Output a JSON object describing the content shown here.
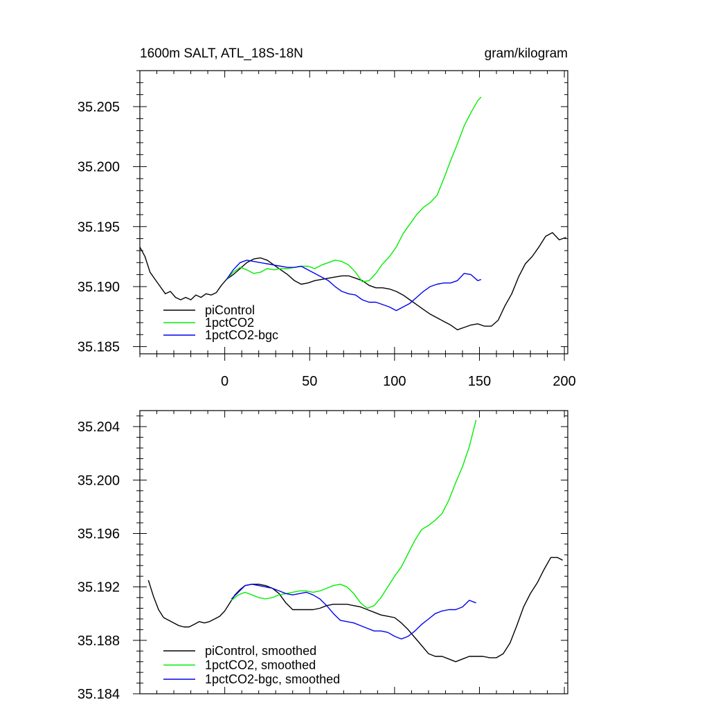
{
  "colors": {
    "piControl": "#000000",
    "1pctCO2": "#00ee00",
    "bgc": "#0000ee"
  },
  "chart_data": [
    {
      "type": "line",
      "title": "1600m SALT, ATL_18S-18N",
      "units": "gram/kilogram",
      "xlabel": "",
      "ylabel": "",
      "xlim": [
        -50,
        202
      ],
      "ylim": [
        35.1844,
        35.208
      ],
      "xticks": [
        0,
        50,
        100,
        150,
        200
      ],
      "xtick_labels": [
        "0",
        "50",
        "100",
        "150",
        "200"
      ],
      "yticks": [
        35.185,
        35.19,
        35.195,
        35.2,
        35.205
      ],
      "ytick_labels": [
        "35.185",
        "35.190",
        "35.195",
        "35.200",
        "35.205"
      ],
      "legend": [
        "piControl",
        "1pctCO2",
        "1pctCO2-bgc"
      ],
      "series": [
        {
          "name": "piControl",
          "color": "#000000",
          "x": [
            -50,
            -47,
            -44,
            -41,
            -38,
            -35,
            -32,
            -29,
            -26,
            -23,
            -20,
            -17,
            -14,
            -11,
            -8,
            -5,
            -2,
            1,
            5,
            9,
            13,
            17,
            21,
            25,
            29,
            33,
            37,
            41,
            45,
            49,
            53,
            57,
            61,
            65,
            69,
            73,
            77,
            81,
            85,
            89,
            93,
            97,
            101,
            105,
            109,
            113,
            117,
            121,
            125,
            129,
            133,
            137,
            141,
            145,
            149,
            153,
            157,
            161,
            165,
            169,
            173,
            177,
            181,
            185,
            189,
            193,
            197,
            201
          ],
          "y": [
            35.1933,
            35.1925,
            35.1912,
            35.1906,
            35.19,
            35.1894,
            35.1896,
            35.1891,
            35.1889,
            35.1891,
            35.1889,
            35.1893,
            35.1891,
            35.1894,
            35.1893,
            35.1895,
            35.1901,
            35.1906,
            35.191,
            35.1915,
            35.192,
            35.1923,
            35.1924,
            35.1922,
            35.1918,
            35.1914,
            35.191,
            35.1905,
            35.1902,
            35.1903,
            35.1905,
            35.1906,
            35.1907,
            35.1908,
            35.1909,
            35.1909,
            35.1907,
            35.1905,
            35.1901,
            35.1899,
            35.1899,
            35.1898,
            35.1896,
            35.1893,
            35.1889,
            35.1885,
            35.1881,
            35.1877,
            35.1874,
            35.1871,
            35.1868,
            35.1864,
            35.1866,
            35.1868,
            35.1869,
            35.1867,
            35.1867,
            35.1872,
            35.1884,
            35.1894,
            35.1908,
            35.1919,
            35.1925,
            35.1933,
            35.1942,
            35.1945,
            35.1939,
            35.1941
          ]
        },
        {
          "name": "1pctCO2",
          "color": "#00ee00",
          "x": [
            1,
            5,
            9,
            13,
            17,
            21,
            25,
            29,
            33,
            37,
            41,
            45,
            49,
            53,
            57,
            61,
            65,
            69,
            73,
            77,
            81,
            85,
            89,
            93,
            97,
            101,
            105,
            109,
            113,
            117,
            121,
            125,
            129,
            133,
            137,
            141,
            145,
            149,
            151
          ],
          "y": [
            35.1906,
            35.1912,
            35.1916,
            35.1914,
            35.1911,
            35.1912,
            35.1915,
            35.1914,
            35.1915,
            35.1915,
            35.1916,
            35.1917,
            35.1917,
            35.1915,
            35.1918,
            35.192,
            35.1922,
            35.1921,
            35.1918,
            35.1912,
            35.1904,
            35.1905,
            35.1911,
            35.1919,
            35.1925,
            35.1933,
            35.1944,
            35.1952,
            35.196,
            35.1966,
            35.197,
            35.1976,
            35.199,
            35.2005,
            35.2019,
            35.2034,
            35.2045,
            35.2055,
            35.2058
          ]
        },
        {
          "name": "1pctCO2-bgc",
          "color": "#0000ee",
          "x": [
            1,
            5,
            9,
            13,
            17,
            21,
            25,
            29,
            33,
            37,
            41,
            45,
            49,
            53,
            57,
            61,
            65,
            69,
            73,
            77,
            81,
            85,
            89,
            93,
            97,
            101,
            105,
            109,
            113,
            117,
            121,
            125,
            129,
            133,
            137,
            141,
            145,
            149,
            151
          ],
          "y": [
            35.1906,
            35.1914,
            35.192,
            35.1922,
            35.1921,
            35.192,
            35.1919,
            35.1918,
            35.1917,
            35.1916,
            35.1916,
            35.1917,
            35.1914,
            35.1911,
            35.1908,
            35.1905,
            35.19,
            35.1896,
            35.1894,
            35.1893,
            35.1889,
            35.1887,
            35.1887,
            35.1885,
            35.1883,
            35.188,
            35.1883,
            35.1886,
            35.1891,
            35.1896,
            35.19,
            35.1902,
            35.1903,
            35.1903,
            35.1905,
            35.1911,
            35.191,
            35.1905,
            35.1906
          ]
        }
      ]
    },
    {
      "type": "line",
      "title": "",
      "xlabel": "",
      "ylabel": "",
      "xlim": [
        -50,
        202
      ],
      "ylim": [
        35.184,
        35.2052
      ],
      "xticks": [
        0,
        50,
        100,
        150,
        200
      ],
      "yticks": [
        35.184,
        35.188,
        35.192,
        35.196,
        35.2,
        35.204
      ],
      "ytick_labels": [
        "35.184",
        "35.188",
        "35.192",
        "35.196",
        "35.200",
        "35.204"
      ],
      "legend": [
        "piControl, smoothed",
        "1pctCO2, smoothed",
        "1pctCO2-bgc, smoothed"
      ],
      "series": [
        {
          "name": "piControl, smoothed",
          "color": "#000000",
          "x": [
            -45,
            -42,
            -39,
            -36,
            -33,
            -30,
            -27,
            -24,
            -21,
            -18,
            -15,
            -12,
            -9,
            -6,
            -3,
            0,
            3,
            6,
            9,
            12,
            16,
            20,
            24,
            28,
            32,
            36,
            40,
            44,
            48,
            52,
            56,
            60,
            64,
            68,
            72,
            76,
            80,
            84,
            88,
            92,
            96,
            100,
            104,
            108,
            112,
            116,
            120,
            124,
            128,
            132,
            136,
            140,
            144,
            148,
            152,
            156,
            160,
            164,
            168,
            172,
            176,
            180,
            184,
            188,
            192,
            196,
            199
          ],
          "y": [
            35.1925,
            35.1913,
            35.1903,
            35.1897,
            35.1895,
            35.1893,
            35.1891,
            35.189,
            35.189,
            35.1892,
            35.1894,
            35.1893,
            35.1894,
            35.1896,
            35.1898,
            35.1902,
            35.1908,
            35.1914,
            35.1918,
            35.1921,
            35.1922,
            35.1922,
            35.1921,
            35.1919,
            35.1915,
            35.1908,
            35.1903,
            35.1903,
            35.1903,
            35.1903,
            35.1904,
            35.1906,
            35.1907,
            35.1907,
            35.1907,
            35.1906,
            35.1905,
            35.1903,
            35.1901,
            35.1899,
            35.1898,
            35.1897,
            35.1893,
            35.1888,
            35.1882,
            35.1876,
            35.187,
            35.1868,
            35.1868,
            35.1866,
            35.1864,
            35.1866,
            35.1868,
            35.1868,
            35.1868,
            35.1867,
            35.1867,
            35.187,
            35.1878,
            35.1891,
            35.1905,
            35.1915,
            35.1923,
            35.1933,
            35.1942,
            35.1942,
            35.194
          ]
        },
        {
          "name": "1pctCO2, smoothed",
          "color": "#00ee00",
          "x": [
            4,
            8,
            12,
            16,
            20,
            24,
            28,
            32,
            36,
            40,
            44,
            48,
            52,
            56,
            60,
            64,
            68,
            72,
            76,
            80,
            84,
            88,
            92,
            96,
            100,
            104,
            108,
            112,
            116,
            120,
            124,
            128,
            132,
            136,
            140,
            144,
            148
          ],
          "y": [
            35.191,
            35.1914,
            35.1916,
            35.1914,
            35.1912,
            35.1911,
            35.1912,
            35.1914,
            35.1915,
            35.1916,
            35.1917,
            35.1917,
            35.1916,
            35.1917,
            35.1919,
            35.1921,
            35.1922,
            35.192,
            35.1915,
            35.1908,
            35.1904,
            35.1906,
            35.1912,
            35.192,
            35.1928,
            35.1935,
            35.1945,
            35.1955,
            35.1963,
            35.1966,
            35.197,
            35.1975,
            35.1985,
            35.1998,
            35.201,
            35.2025,
            35.2045
          ]
        },
        {
          "name": "1pctCO2-bgc, smoothed",
          "color": "#0000ee",
          "x": [
            4,
            8,
            12,
            16,
            20,
            24,
            28,
            32,
            36,
            40,
            44,
            48,
            52,
            56,
            60,
            64,
            68,
            72,
            76,
            80,
            84,
            88,
            92,
            96,
            100,
            104,
            108,
            112,
            116,
            120,
            124,
            128,
            132,
            136,
            140,
            144,
            148
          ],
          "y": [
            35.1911,
            35.1916,
            35.1921,
            35.1922,
            35.1921,
            35.192,
            35.1919,
            35.1917,
            35.1915,
            35.1914,
            35.1915,
            35.1916,
            35.1914,
            35.1911,
            35.1906,
            35.19,
            35.1895,
            35.1894,
            35.1893,
            35.1891,
            35.1889,
            35.1887,
            35.1887,
            35.1886,
            35.1883,
            35.1881,
            35.1883,
            35.1887,
            35.1892,
            35.1896,
            35.19,
            35.1902,
            35.1903,
            35.1903,
            35.1905,
            35.191,
            35.1908
          ]
        }
      ]
    }
  ]
}
